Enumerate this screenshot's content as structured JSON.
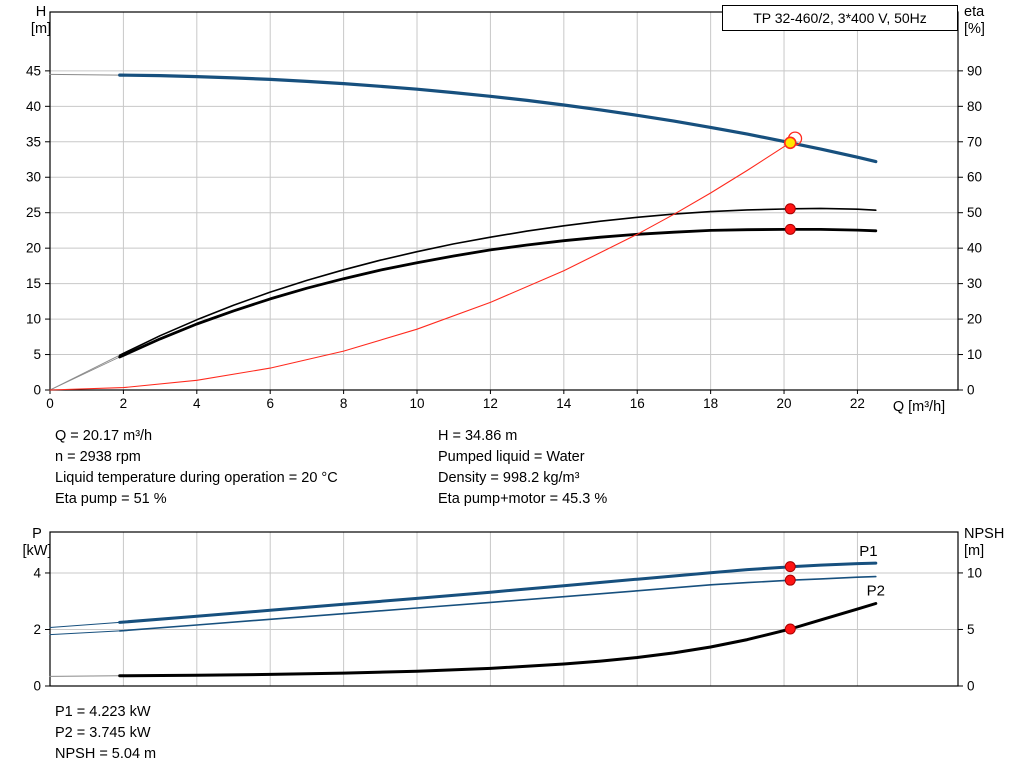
{
  "title_box": "TP 32-460/2, 3*400 V, 50Hz",
  "colors": {
    "curve_blue": "#17507e",
    "label_blue": "#2d6ca8",
    "curve_red": "#ff2a1e",
    "dot_red": "#ff1414",
    "dot_red_edge": "#a80000",
    "duty_yellow": "#ffe600",
    "grid": "#c8c8c8",
    "frame": "#000000",
    "lead_gray": "#8a8a8a"
  },
  "axis_titles": {
    "top_left": [
      "H",
      "[m]"
    ],
    "top_right": [
      "eta",
      "[%]"
    ],
    "x": "Q [m³/h]",
    "bottom_left": [
      "P",
      "[kW]"
    ],
    "bottom_right": [
      "NPSH",
      "[m]"
    ]
  },
  "info_top": {
    "left": [
      "Q = 20.17 m³/h",
      "n = 2938 rpm",
      "Liquid temperature during operation = 20 °C",
      "Eta pump = 51 %"
    ],
    "right": [
      "H = 34.86 m",
      "Pumped liquid = Water",
      "Density = 998.2 kg/m³",
      "Eta pump+motor = 45.3 %"
    ]
  },
  "info_bottom": [
    "P1 = 4.223 kW",
    "P2 = 3.745 kW",
    "NPSH = 5.04 m"
  ],
  "chart_data": [
    {
      "type": "line",
      "title": "TP 32-460/2, 3*400 V, 50Hz",
      "xlabel": "Q [m³/h]",
      "ylabel_left": "H [m]",
      "ylabel_right": "eta [%]",
      "x_range": [
        0,
        24.74
      ],
      "y_left_range": [
        0,
        53.3
      ],
      "y_right_range": [
        0,
        106.6
      ],
      "x_ticks": [
        0,
        2,
        4,
        6,
        8,
        10,
        12,
        14,
        16,
        18,
        20,
        22
      ],
      "show_x_labels": true,
      "y_left_ticks": [
        0,
        5,
        10,
        15,
        20,
        25,
        30,
        35,
        40,
        45
      ],
      "y_right_ticks": [
        0,
        10,
        20,
        30,
        40,
        50,
        60,
        70,
        80,
        90
      ],
      "series": [
        {
          "name": "h-curve-lead",
          "axis": "left",
          "color": "#8a8a8a",
          "width": 1,
          "points": [
            [
              0,
              44.5
            ],
            [
              1.9,
              44.4
            ]
          ]
        },
        {
          "name": "h-curve",
          "axis": "left",
          "color": "#17507e",
          "width": 3.2,
          "points": [
            [
              1.9,
              44.4
            ],
            [
              3,
              44.33
            ],
            [
              4,
              44.19
            ],
            [
              5,
              44.01
            ],
            [
              6,
              43.79
            ],
            [
              7,
              43.52
            ],
            [
              8,
              43.2
            ],
            [
              9,
              42.83
            ],
            [
              10,
              42.41
            ],
            [
              11,
              41.94
            ],
            [
              12,
              41.41
            ],
            [
              13,
              40.83
            ],
            [
              14,
              40.19
            ],
            [
              15,
              39.49
            ],
            [
              16,
              38.73
            ],
            [
              17,
              37.91
            ],
            [
              18,
              37.03
            ],
            [
              19,
              36.08
            ],
            [
              20,
              35.06
            ],
            [
              20.17,
              34.86
            ],
            [
              21,
              33.97
            ],
            [
              22,
              32.82
            ],
            [
              22.5,
              32.21
            ]
          ]
        },
        {
          "name": "eta-pump-lead",
          "axis": "right",
          "color": "#8a8a8a",
          "width": 0.9,
          "points": [
            [
              0,
              0
            ],
            [
              1.9,
              9.8
            ]
          ]
        },
        {
          "name": "eta-pump",
          "axis": "right",
          "color": "#000000",
          "width": 1.6,
          "points": [
            [
              1.9,
              9.8
            ],
            [
              3,
              15.3
            ],
            [
              4,
              19.8
            ],
            [
              5,
              23.9
            ],
            [
              6,
              27.6
            ],
            [
              7,
              30.9
            ],
            [
              8,
              33.9
            ],
            [
              9,
              36.6
            ],
            [
              10,
              39.0
            ],
            [
              11,
              41.2
            ],
            [
              12,
              43.1
            ],
            [
              13,
              44.8
            ],
            [
              14,
              46.3
            ],
            [
              15,
              47.6
            ],
            [
              16,
              48.7
            ],
            [
              17,
              49.6
            ],
            [
              18,
              50.3
            ],
            [
              19,
              50.8
            ],
            [
              20,
              51.05
            ],
            [
              20.17,
              51.1
            ],
            [
              21,
              51.2
            ],
            [
              22,
              51.0
            ],
            [
              22.5,
              50.7
            ]
          ]
        },
        {
          "name": "eta-pump-motor-lead",
          "axis": "right",
          "color": "#8a8a8a",
          "width": 0.9,
          "points": [
            [
              0,
              0
            ],
            [
              1.9,
              9.3
            ]
          ]
        },
        {
          "name": "eta-pump-motor",
          "axis": "right",
          "color": "#000000",
          "width": 2.8,
          "points": [
            [
              1.9,
              9.3
            ],
            [
              3,
              14.4
            ],
            [
              4,
              18.6
            ],
            [
              5,
              22.3
            ],
            [
              6,
              25.7
            ],
            [
              7,
              28.7
            ],
            [
              8,
              31.4
            ],
            [
              9,
              33.8
            ],
            [
              10,
              35.9
            ],
            [
              11,
              37.8
            ],
            [
              12,
              39.5
            ],
            [
              13,
              40.9
            ],
            [
              14,
              42.1
            ],
            [
              15,
              43.1
            ],
            [
              16,
              43.9
            ],
            [
              17,
              44.5
            ],
            [
              18,
              45.0
            ],
            [
              19,
              45.2
            ],
            [
              20,
              45.3
            ],
            [
              20.17,
              45.3
            ],
            [
              21,
              45.3
            ],
            [
              22,
              45.1
            ],
            [
              22.5,
              44.9
            ]
          ]
        },
        {
          "name": "system-curve",
          "axis": "left",
          "color": "#ff2a1e",
          "width": 1.1,
          "points": [
            [
              0,
              0
            ],
            [
              2,
              0.34
            ],
            [
              4,
              1.37
            ],
            [
              6,
              3.09
            ],
            [
              8,
              5.49
            ],
            [
              10,
              8.58
            ],
            [
              12,
              12.35
            ],
            [
              14,
              16.81
            ],
            [
              16,
              21.95
            ],
            [
              17,
              24.78
            ],
            [
              18,
              27.78
            ],
            [
              19,
              30.96
            ],
            [
              20,
              34.3
            ],
            [
              20.17,
              34.86
            ]
          ]
        }
      ],
      "markers": [
        {
          "x": 20.3,
          "y": 35.45,
          "axis": "left",
          "style": "ring"
        },
        {
          "x": 20.17,
          "y": 34.86,
          "axis": "left",
          "style": "duty"
        },
        {
          "x": 20.17,
          "y": 51.1,
          "axis": "right",
          "style": "dot"
        },
        {
          "x": 20.17,
          "y": 45.3,
          "axis": "right",
          "style": "dot"
        }
      ],
      "labels": []
    },
    {
      "type": "line",
      "title": "",
      "xlabel": "Q [m³/h]",
      "ylabel_left": "P [kW]",
      "ylabel_right": "NPSH [m]",
      "x_range": [
        0,
        24.74
      ],
      "y_left_range": [
        0,
        5.45
      ],
      "y_right_range": [
        0,
        13.62
      ],
      "x_ticks": [
        0,
        2,
        4,
        6,
        8,
        10,
        12,
        14,
        16,
        18,
        20,
        22
      ],
      "show_x_labels": false,
      "y_left_ticks": [
        0,
        2,
        4
      ],
      "y_right_ticks": [
        0,
        5,
        10
      ],
      "series": [
        {
          "name": "p1-lead",
          "axis": "left",
          "color": "#17507e",
          "width": 1,
          "points": [
            [
              0,
              2.07
            ],
            [
              1.9,
              2.25
            ]
          ]
        },
        {
          "name": "p1",
          "axis": "left",
          "color": "#17507e",
          "width": 3,
          "points": [
            [
              1.9,
              2.25
            ],
            [
              4,
              2.47
            ],
            [
              6,
              2.68
            ],
            [
              8,
              2.89
            ],
            [
              10,
              3.1
            ],
            [
              12,
              3.32
            ],
            [
              14,
              3.55
            ],
            [
              16,
              3.78
            ],
            [
              18,
              4.01
            ],
            [
              19,
              4.12
            ],
            [
              20,
              4.2
            ],
            [
              20.17,
              4.223
            ],
            [
              21,
              4.28
            ],
            [
              22,
              4.33
            ],
            [
              22.5,
              4.35
            ]
          ]
        },
        {
          "name": "p2-lead",
          "axis": "left",
          "color": "#17507e",
          "width": 1,
          "points": [
            [
              0,
              1.82
            ],
            [
              1.9,
              1.95
            ]
          ]
        },
        {
          "name": "p2",
          "axis": "left",
          "color": "#17507e",
          "width": 1.6,
          "points": [
            [
              1.9,
              1.95
            ],
            [
              4,
              2.16
            ],
            [
              6,
              2.36
            ],
            [
              8,
              2.56
            ],
            [
              10,
              2.76
            ],
            [
              12,
              2.96
            ],
            [
              14,
              3.16
            ],
            [
              16,
              3.37
            ],
            [
              18,
              3.58
            ],
            [
              19,
              3.66
            ],
            [
              20,
              3.73
            ],
            [
              20.17,
              3.745
            ],
            [
              21,
              3.79
            ],
            [
              22,
              3.85
            ],
            [
              22.5,
              3.87
            ]
          ]
        },
        {
          "name": "npsh-lead",
          "axis": "right",
          "color": "#8a8a8a",
          "width": 1,
          "points": [
            [
              0,
              0.85
            ],
            [
              1.9,
              0.9
            ]
          ]
        },
        {
          "name": "npsh",
          "axis": "right",
          "color": "#000000",
          "width": 3,
          "points": [
            [
              1.9,
              0.9
            ],
            [
              4,
              0.95
            ],
            [
              6,
              1.03
            ],
            [
              8,
              1.14
            ],
            [
              10,
              1.3
            ],
            [
              12,
              1.56
            ],
            [
              14,
              1.95
            ],
            [
              15,
              2.2
            ],
            [
              16,
              2.52
            ],
            [
              17,
              2.93
            ],
            [
              18,
              3.45
            ],
            [
              19,
              4.1
            ],
            [
              20,
              4.9
            ],
            [
              20.17,
              5.04
            ],
            [
              21,
              5.85
            ],
            [
              22,
              6.8
            ],
            [
              22.5,
              7.3
            ]
          ]
        }
      ],
      "markers": [
        {
          "x": 20.17,
          "y": 4.223,
          "axis": "left",
          "style": "dot"
        },
        {
          "x": 20.17,
          "y": 3.745,
          "axis": "left",
          "style": "dot"
        },
        {
          "x": 20.17,
          "y": 5.04,
          "axis": "right",
          "style": "dot"
        }
      ],
      "labels": [
        {
          "text": "P1",
          "x": 22.05,
          "y": 4.6,
          "axis": "left",
          "color": "#2d6ca8"
        },
        {
          "text": "P2",
          "x": 22.25,
          "y": 3.2,
          "axis": "left",
          "color": "#2d6ca8"
        }
      ]
    }
  ]
}
